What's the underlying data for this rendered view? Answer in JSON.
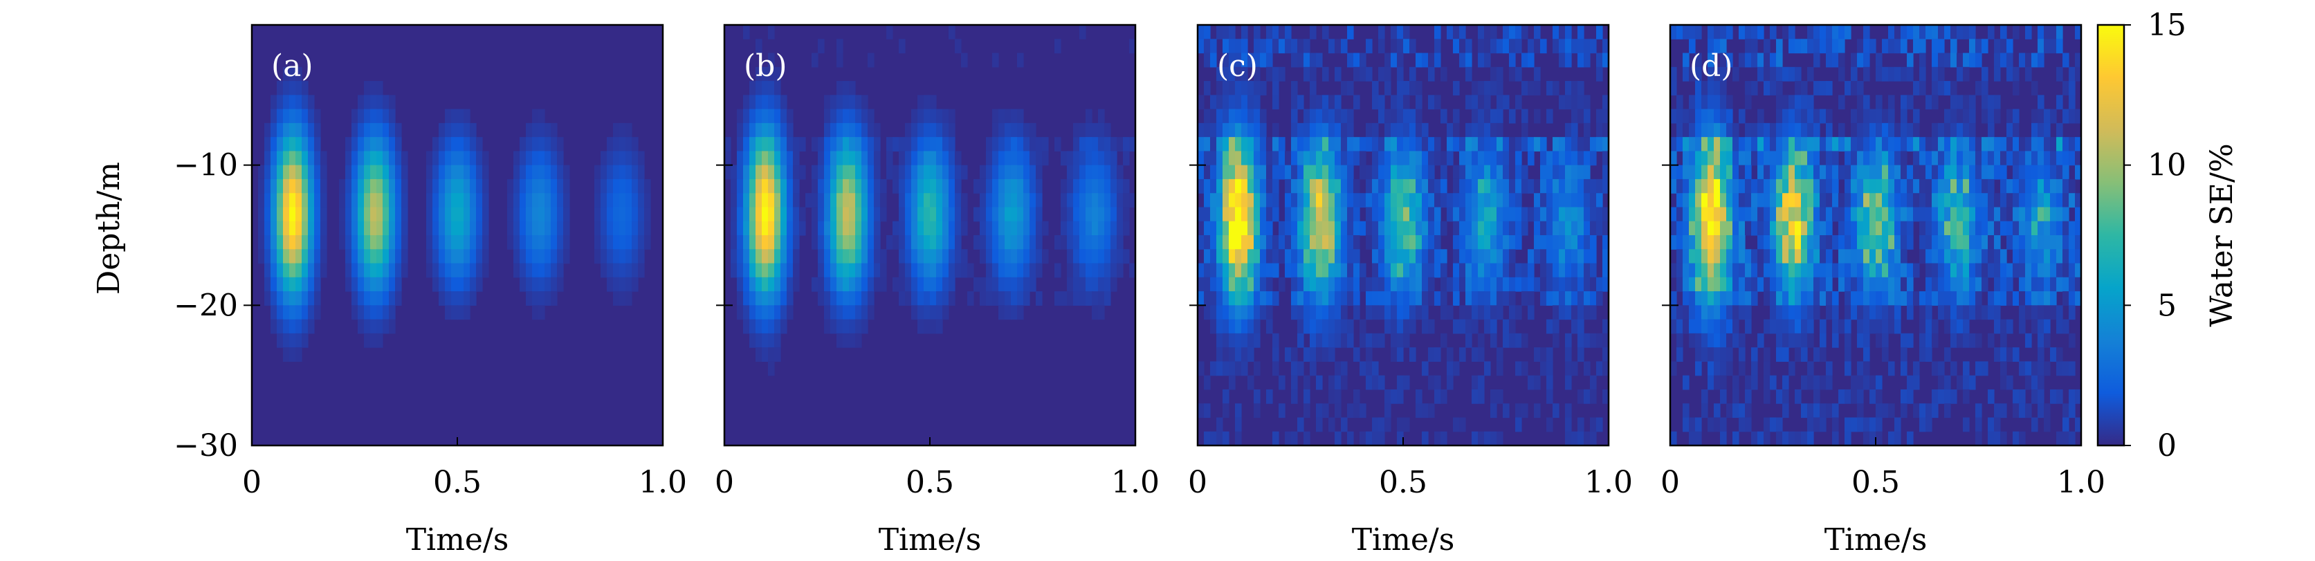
{
  "chart_data": [
    {
      "type": "heatmap",
      "panel_label": "(a)",
      "xlabel": "Time/s",
      "ylabel": "Depth/m",
      "xlim": [
        0,
        1.0
      ],
      "ylim": [
        -30,
        0
      ],
      "x_ticks": [
        "0",
        "0.5",
        "1.0"
      ],
      "y_ticks": [
        "−10",
        "−20",
        "−30"
      ],
      "pulses": [
        {
          "t": 0.1,
          "depth": -13.5,
          "peak": 15.0,
          "noise": "none"
        },
        {
          "t": 0.3,
          "depth": -13.5,
          "peak": 11.0,
          "noise": "none"
        },
        {
          "t": 0.5,
          "depth": -13.5,
          "peak": 6.0,
          "noise": "none"
        },
        {
          "t": 0.7,
          "depth": -13.5,
          "peak": 4.0,
          "noise": "none"
        },
        {
          "t": 0.9,
          "depth": -13.5,
          "peak": 2.5,
          "noise": "none"
        }
      ]
    },
    {
      "type": "heatmap",
      "panel_label": "(b)",
      "xlabel": "Time/s",
      "ylabel": "",
      "xlim": [
        0,
        1.0
      ],
      "ylim": [
        -30,
        0
      ],
      "x_ticks": [
        "0",
        "0.5",
        "1.0"
      ],
      "y_ticks": [],
      "pulses": [
        {
          "t": 0.1,
          "depth": -13.5,
          "peak": 15.0,
          "noise": "low"
        },
        {
          "t": 0.3,
          "depth": -13.5,
          "peak": 11.0,
          "noise": "low"
        },
        {
          "t": 0.5,
          "depth": -13.5,
          "peak": 7.0,
          "noise": "low"
        },
        {
          "t": 0.7,
          "depth": -13.5,
          "peak": 5.0,
          "noise": "low"
        },
        {
          "t": 0.9,
          "depth": -13.5,
          "peak": 3.5,
          "noise": "low"
        }
      ]
    },
    {
      "type": "heatmap",
      "panel_label": "(c)",
      "xlabel": "Time/s",
      "ylabel": "",
      "xlim": [
        0,
        1.0
      ],
      "ylim": [
        -30,
        0
      ],
      "x_ticks": [
        "0",
        "0.5",
        "1.0"
      ],
      "y_ticks": [],
      "pulses": [
        {
          "t": 0.1,
          "depth": -14.0,
          "peak": 14.5,
          "noise": "medium"
        },
        {
          "t": 0.3,
          "depth": -14.0,
          "peak": 10.5,
          "noise": "medium"
        },
        {
          "t": 0.5,
          "depth": -14.0,
          "peak": 7.0,
          "noise": "medium"
        },
        {
          "t": 0.7,
          "depth": -14.0,
          "peak": 4.5,
          "noise": "medium"
        },
        {
          "t": 0.9,
          "depth": -14.0,
          "peak": 3.0,
          "noise": "medium"
        }
      ]
    },
    {
      "type": "heatmap",
      "panel_label": "(d)",
      "xlabel": "Time/s",
      "ylabel": "",
      "xlim": [
        0,
        1.0
      ],
      "ylim": [
        -30,
        0
      ],
      "x_ticks": [
        "0",
        "0.5",
        "1.0"
      ],
      "y_ticks": [],
      "pulses": [
        {
          "t": 0.1,
          "depth": -14.0,
          "peak": 14.0,
          "noise": "high"
        },
        {
          "t": 0.3,
          "depth": -14.0,
          "peak": 10.0,
          "noise": "high"
        },
        {
          "t": 0.5,
          "depth": -14.0,
          "peak": 7.0,
          "noise": "high"
        },
        {
          "t": 0.7,
          "depth": -14.0,
          "peak": 5.0,
          "noise": "high"
        },
        {
          "t": 0.9,
          "depth": -14.0,
          "peak": 3.5,
          "noise": "high"
        }
      ]
    }
  ],
  "colorbar": {
    "label": "Water SE/%",
    "min": 0,
    "max": 15,
    "ticks": [
      "0",
      "5",
      "10",
      "15"
    ],
    "colormap": [
      "#352a87",
      "#0f5cdd",
      "#1481d6",
      "#06a4ca",
      "#2eb7a4",
      "#87bf77",
      "#d1bb59",
      "#fec832",
      "#f9fb0e"
    ]
  }
}
